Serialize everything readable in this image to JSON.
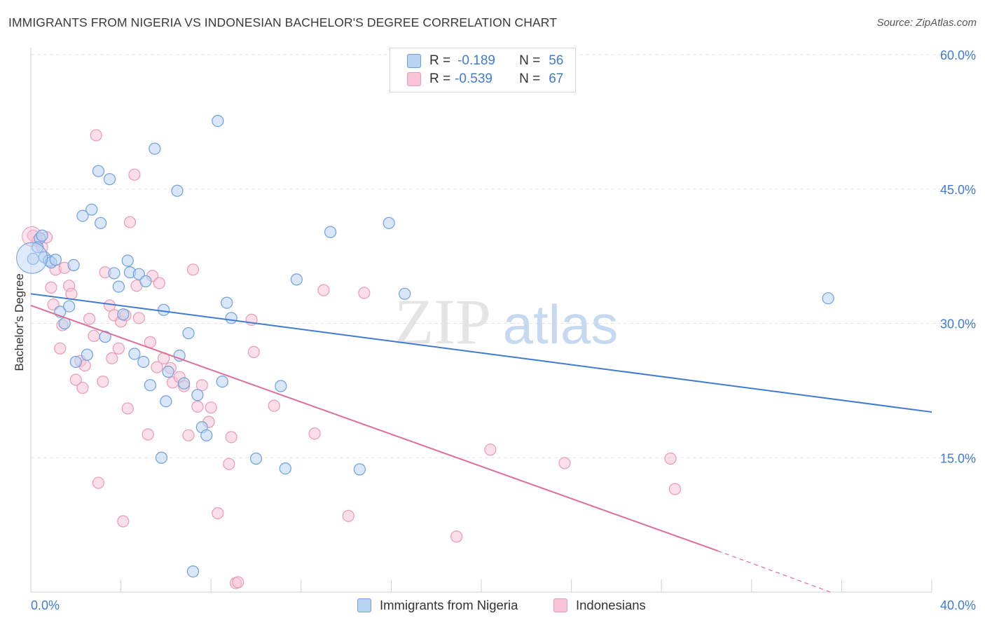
{
  "title": "IMMIGRANTS FROM NIGERIA VS INDONESIAN BACHELOR'S DEGREE CORRELATION CHART",
  "source": "Source: ZipAtlas.com",
  "watermark": {
    "zip": "ZIP",
    "atlas": "atlas"
  },
  "legend": {
    "blue": {
      "r_label": "R =",
      "r_value": "-0.189",
      "n_label": "N =",
      "n_value": "56"
    },
    "pink": {
      "r_label": "R =",
      "r_value": "-0.539",
      "n_label": "N =",
      "n_value": "67"
    }
  },
  "bottom_legend": {
    "blue": "Immigrants from Nigeria",
    "pink": "Indonesians"
  },
  "colors": {
    "blue": "#3f7bd1",
    "blue_fill": "#b9d3f3",
    "pink": "#e06c9a",
    "pink_fill": "#f6c4d6",
    "axis_text": "#3f7bd1",
    "grid": "#e3e3e3"
  },
  "chart_data": {
    "type": "scatter",
    "title": "IMMIGRANTS FROM NIGERIA VS INDONESIAN BACHELOR'S DEGREE CORRELATION CHART",
    "xlabel": "",
    "ylabel": "Bachelor's Degree",
    "xlim": [
      0,
      40
    ],
    "ylim": [
      0,
      60
    ],
    "x_tick_labels": [
      "0.0%",
      "40.0%"
    ],
    "y_tick_labels": [
      "15.0%",
      "30.0%",
      "45.0%",
      "60.0%"
    ],
    "y_ticks": [
      15,
      30,
      45,
      60
    ],
    "grid": true,
    "series": [
      {
        "name": "Immigrants from Nigeria",
        "color": "#3f7bd1",
        "trend": {
          "x": [
            0,
            40
          ],
          "y": [
            33.3,
            20.1
          ]
        },
        "points": [
          [
            0.1,
            37.2
          ],
          [
            0.4,
            39.5
          ],
          [
            0.5,
            39.8
          ],
          [
            0.6,
            37.4
          ],
          [
            0.8,
            37.0
          ],
          [
            0.9,
            36.8
          ],
          [
            1.3,
            31.3
          ],
          [
            1.5,
            30.0
          ],
          [
            1.7,
            31.9
          ],
          [
            1.9,
            36.5
          ],
          [
            2.0,
            25.7
          ],
          [
            2.3,
            42.0
          ],
          [
            2.5,
            26.5
          ],
          [
            2.7,
            42.7
          ],
          [
            3.0,
            47.0
          ],
          [
            3.1,
            41.2
          ],
          [
            3.3,
            28.5
          ],
          [
            3.5,
            46.1
          ],
          [
            3.7,
            35.6
          ],
          [
            3.9,
            34.1
          ],
          [
            4.1,
            31.0
          ],
          [
            4.3,
            37.0
          ],
          [
            4.4,
            35.7
          ],
          [
            4.6,
            26.6
          ],
          [
            4.8,
            35.5
          ],
          [
            5.0,
            25.7
          ],
          [
            5.1,
            34.7
          ],
          [
            5.3,
            23.1
          ],
          [
            5.5,
            49.5
          ],
          [
            5.8,
            15.0
          ],
          [
            5.9,
            31.5
          ],
          [
            6.0,
            21.3
          ],
          [
            6.1,
            24.6
          ],
          [
            6.5,
            44.8
          ],
          [
            6.6,
            26.4
          ],
          [
            6.8,
            23.3
          ],
          [
            7.0,
            28.9
          ],
          [
            7.2,
            2.3
          ],
          [
            7.4,
            22.0
          ],
          [
            7.6,
            18.4
          ],
          [
            7.8,
            17.5
          ],
          [
            8.3,
            52.6
          ],
          [
            8.5,
            23.5
          ],
          [
            8.7,
            32.3
          ],
          [
            8.9,
            30.6
          ],
          [
            10.0,
            14.9
          ],
          [
            11.1,
            23.0
          ],
          [
            11.3,
            13.8
          ],
          [
            11.8,
            34.9
          ],
          [
            13.3,
            40.2
          ],
          [
            14.6,
            13.7
          ],
          [
            15.9,
            41.2
          ],
          [
            16.6,
            33.3
          ],
          [
            35.4,
            32.8
          ],
          [
            0.3,
            38.5
          ],
          [
            1.1,
            37.1
          ]
        ]
      },
      {
        "name": "Indonesians",
        "color": "#e06c9a",
        "trend": {
          "x": [
            0,
            30.5
          ],
          "y": [
            32.0,
            4.6
          ]
        },
        "trend_dashed": {
          "x": [
            30.5,
            35.5
          ],
          "y": [
            4.6,
            0.0
          ]
        },
        "points": [
          [
            0.1,
            39.8
          ],
          [
            0.3,
            39.2
          ],
          [
            0.5,
            38.5
          ],
          [
            0.7,
            39.6
          ],
          [
            0.9,
            34.0
          ],
          [
            1.0,
            32.1
          ],
          [
            1.1,
            36.0
          ],
          [
            1.3,
            27.2
          ],
          [
            1.4,
            29.8
          ],
          [
            1.5,
            36.2
          ],
          [
            1.7,
            34.2
          ],
          [
            1.8,
            33.3
          ],
          [
            2.0,
            23.7
          ],
          [
            2.2,
            25.8
          ],
          [
            2.3,
            22.8
          ],
          [
            2.4,
            25.3
          ],
          [
            2.6,
            30.5
          ],
          [
            2.8,
            28.6
          ],
          [
            2.9,
            51.0
          ],
          [
            3.0,
            12.2
          ],
          [
            3.2,
            23.5
          ],
          [
            3.3,
            35.7
          ],
          [
            3.5,
            32.0
          ],
          [
            3.6,
            26.1
          ],
          [
            3.7,
            30.9
          ],
          [
            3.9,
            27.2
          ],
          [
            4.0,
            30.2
          ],
          [
            4.1,
            7.9
          ],
          [
            4.3,
            20.5
          ],
          [
            4.4,
            41.3
          ],
          [
            4.6,
            46.6
          ],
          [
            4.7,
            34.2
          ],
          [
            4.8,
            30.6
          ],
          [
            5.2,
            17.6
          ],
          [
            5.3,
            27.9
          ],
          [
            5.4,
            35.3
          ],
          [
            5.6,
            25.1
          ],
          [
            5.7,
            34.5
          ],
          [
            6.2,
            25.0
          ],
          [
            6.3,
            23.4
          ],
          [
            6.6,
            24.0
          ],
          [
            6.8,
            23.0
          ],
          [
            7.0,
            17.5
          ],
          [
            7.2,
            36.0
          ],
          [
            7.4,
            20.7
          ],
          [
            7.6,
            23.1
          ],
          [
            7.9,
            19.0
          ],
          [
            8.0,
            20.6
          ],
          [
            8.3,
            8.8
          ],
          [
            8.8,
            14.3
          ],
          [
            8.9,
            17.3
          ],
          [
            9.1,
            1.0
          ],
          [
            9.2,
            1.1
          ],
          [
            9.8,
            30.4
          ],
          [
            9.9,
            26.8
          ],
          [
            10.8,
            20.8
          ],
          [
            12.6,
            17.7
          ],
          [
            13.0,
            33.7
          ],
          [
            14.1,
            8.5
          ],
          [
            14.8,
            33.4
          ],
          [
            18.9,
            6.2
          ],
          [
            20.4,
            15.9
          ],
          [
            23.7,
            14.4
          ],
          [
            28.4,
            14.9
          ],
          [
            28.6,
            11.5
          ],
          [
            4.2,
            30.9
          ],
          [
            5.9,
            26.1
          ]
        ]
      }
    ]
  }
}
